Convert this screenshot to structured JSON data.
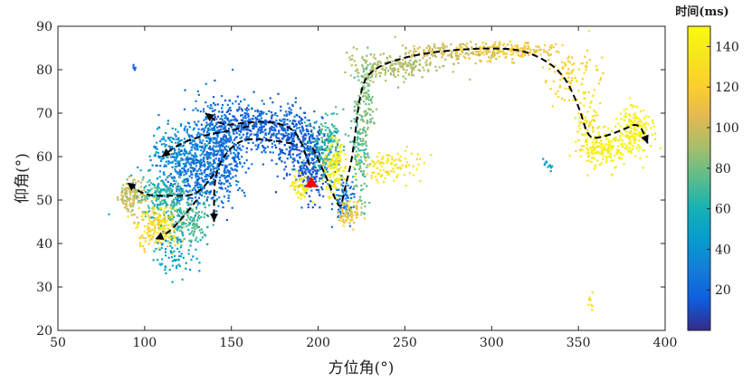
{
  "chart_data": {
    "type": "scatter",
    "title": "",
    "xlabel": "方位角(°)",
    "ylabel": "仰角(°)",
    "xlim": [
      50,
      400
    ],
    "ylim": [
      20,
      90
    ],
    "xticks": [
      50,
      100,
      150,
      200,
      250,
      300,
      350,
      400
    ],
    "yticks": [
      20,
      30,
      40,
      50,
      60,
      70,
      80,
      90
    ],
    "grid": false,
    "colormap": "parula",
    "colorbar": {
      "title": "时间(ms)",
      "range": [
        0,
        150
      ],
      "ticks": [
        20,
        40,
        60,
        80,
        100,
        120,
        140
      ]
    },
    "marker_start": {
      "x": 196,
      "y": 54,
      "shape": "triangle",
      "color": "#ff0000"
    },
    "clusters": [
      {
        "cx": 196,
        "cy": 58,
        "sx": 6,
        "sy": 4,
        "n": 220,
        "t": [
          5,
          25
        ]
      },
      {
        "cx": 185,
        "cy": 64,
        "sx": 8,
        "sy": 3,
        "n": 220,
        "t": [
          8,
          25
        ]
      },
      {
        "cx": 162,
        "cy": 67,
        "sx": 14,
        "sy": 3,
        "n": 380,
        "t": [
          10,
          30
        ]
      },
      {
        "cx": 140,
        "cy": 63,
        "sx": 8,
        "sy": 5,
        "n": 320,
        "t": [
          15,
          35
        ]
      },
      {
        "cx": 120,
        "cy": 61,
        "sx": 8,
        "sy": 3,
        "n": 220,
        "t": [
          30,
          50
        ]
      },
      {
        "cx": 130,
        "cy": 55,
        "sx": 10,
        "sy": 4,
        "n": 320,
        "t": [
          15,
          35
        ]
      },
      {
        "cx": 110,
        "cy": 51,
        "sx": 9,
        "sy": 2.5,
        "n": 220,
        "t": [
          50,
          80
        ]
      },
      {
        "cx": 92,
        "cy": 51,
        "sx": 4,
        "sy": 2,
        "n": 110,
        "t": [
          90,
          110
        ]
      },
      {
        "cx": 108,
        "cy": 44,
        "sx": 6,
        "sy": 2.5,
        "n": 220,
        "t": [
          110,
          145
        ]
      },
      {
        "cx": 125,
        "cy": 45,
        "sx": 7,
        "sy": 2.5,
        "n": 150,
        "t": [
          60,
          80
        ]
      },
      {
        "cx": 118,
        "cy": 38,
        "sx": 6,
        "sy": 2.5,
        "n": 80,
        "t": [
          40,
          60
        ]
      },
      {
        "cx": 148,
        "cy": 60,
        "sx": 5,
        "sy": 5,
        "n": 120,
        "t": [
          15,
          30
        ]
      },
      {
        "cx": 205,
        "cy": 62,
        "sx": 5,
        "sy": 4,
        "n": 180,
        "t": [
          55,
          80
        ]
      },
      {
        "cx": 209,
        "cy": 57,
        "sx": 3,
        "sy": 3,
        "n": 130,
        "t": [
          130,
          150
        ]
      },
      {
        "cx": 215,
        "cy": 50,
        "sx": 3,
        "sy": 3,
        "n": 90,
        "t": [
          20,
          40
        ]
      },
      {
        "cx": 218,
        "cy": 47,
        "sx": 3,
        "sy": 1.5,
        "n": 70,
        "t": [
          100,
          130
        ]
      },
      {
        "cx": 190,
        "cy": 53,
        "sx": 3,
        "sy": 2,
        "n": 60,
        "t": [
          130,
          150
        ]
      },
      {
        "cx": 224,
        "cy": 60,
        "sx": 2.5,
        "sy": 6,
        "n": 120,
        "t": [
          65,
          85
        ]
      },
      {
        "cx": 227,
        "cy": 73,
        "sx": 2.5,
        "sy": 5,
        "n": 120,
        "t": [
          75,
          90
        ]
      },
      {
        "cx": 240,
        "cy": 58,
        "sx": 10,
        "sy": 1.8,
        "n": 110,
        "t": [
          125,
          145
        ]
      },
      {
        "cx": 245,
        "cy": 81,
        "sx": 15,
        "sy": 1.5,
        "n": 180,
        "t": [
          85,
          100
        ]
      },
      {
        "cx": 280,
        "cy": 84,
        "sx": 18,
        "sy": 1,
        "n": 170,
        "t": [
          90,
          110
        ]
      },
      {
        "cx": 310,
        "cy": 84.5,
        "sx": 14,
        "sy": 1,
        "n": 140,
        "t": [
          110,
          125
        ]
      },
      {
        "cx": 345,
        "cy": 79,
        "sx": 8,
        "sy": 3,
        "n": 90,
        "t": [
          115,
          130
        ]
      },
      {
        "cx": 355,
        "cy": 68,
        "sx": 4,
        "sy": 4,
        "n": 80,
        "t": [
          125,
          140
        ]
      },
      {
        "cx": 365,
        "cy": 62,
        "sx": 7,
        "sy": 2,
        "n": 180,
        "t": [
          135,
          150
        ]
      },
      {
        "cx": 383,
        "cy": 66,
        "sx": 5,
        "sy": 3,
        "n": 170,
        "t": [
          135,
          150
        ]
      },
      {
        "cx": 333,
        "cy": 58,
        "sx": 2,
        "sy": 0.8,
        "n": 12,
        "t": [
          40,
          60
        ]
      },
      {
        "cx": 357,
        "cy": 26,
        "sx": 0.8,
        "sy": 1,
        "n": 8,
        "t": [
          125,
          135
        ]
      },
      {
        "cx": 94,
        "cy": 80.5,
        "sx": 0.8,
        "sy": 0.4,
        "n": 5,
        "t": [
          15,
          25
        ]
      }
    ],
    "path_arrows": [
      {
        "points": [
          [
            195,
            58
          ],
          [
            188,
            66
          ],
          [
            175,
            68
          ],
          [
            160,
            68
          ],
          [
            145,
            67
          ],
          [
            135,
            70
          ]
        ]
      },
      {
        "points": [
          [
            160,
            67
          ],
          [
            150,
            66
          ],
          [
            135,
            65
          ],
          [
            120,
            63
          ],
          [
            110,
            60
          ]
        ]
      },
      {
        "points": [
          [
            185,
            63
          ],
          [
            170,
            64
          ],
          [
            155,
            64
          ],
          [
            145,
            60
          ],
          [
            140,
            55
          ],
          [
            140,
            45
          ]
        ]
      },
      {
        "points": [
          [
            140,
            56
          ],
          [
            130,
            51
          ],
          [
            115,
            51
          ],
          [
            100,
            51
          ],
          [
            90,
            54
          ]
        ]
      },
      {
        "points": [
          [
            130,
            50
          ],
          [
            120,
            45
          ],
          [
            112,
            42
          ],
          [
            106,
            41
          ]
        ]
      },
      {
        "points": [
          [
            197,
            62
          ],
          [
            205,
            55
          ],
          [
            210,
            50
          ],
          [
            213,
            48
          ],
          [
            215,
            52
          ],
          [
            220,
            60
          ],
          [
            224,
            75
          ],
          [
            230,
            80
          ],
          [
            250,
            83
          ],
          [
            275,
            84.5
          ],
          [
            300,
            85
          ],
          [
            320,
            84.5
          ],
          [
            340,
            80
          ],
          [
            350,
            72
          ],
          [
            355,
            65
          ],
          [
            360,
            64
          ],
          [
            375,
            66
          ],
          [
            385,
            68
          ],
          [
            390,
            63
          ]
        ]
      }
    ]
  }
}
